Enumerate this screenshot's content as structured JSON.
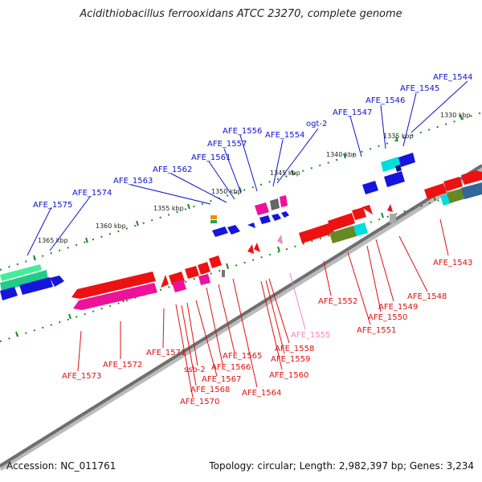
{
  "title": "Acidithiobacillus ferrooxidans ATCC 23270, complete genome",
  "footer": {
    "accession": "Accession: NC_011761",
    "summary": "Topology: circular; Length: 2,982,397 bp; Genes: 3,234"
  },
  "colors": {
    "forward_label": "#1010cc",
    "reverse_label": "#dd1111",
    "faded_label": "#ee88bb",
    "backbone": "#777777",
    "tick": "#228822"
  },
  "ruler_outer": [
    "1330 kbp",
    "1335 kbp",
    "1340 kbp",
    "1345 kbp",
    "1350 kbp",
    "1355 kbp",
    "1360 kbp",
    "1365 kbp"
  ],
  "labels_top": [
    "AFE_1544",
    "AFE_1545",
    "AFE_1546",
    "AFE_1547",
    "ogt-2",
    "AFE_1554",
    "AFE_1556",
    "AFE_1557",
    "AFE_1561",
    "AFE_1562",
    "AFE_1563",
    "AFE_1574",
    "AFE_1575"
  ],
  "labels_bottom": [
    "AFE_1543",
    "AFE_1548",
    "AFE_1549",
    "AFE_1550",
    "AFE_1551",
    "AFE_1552",
    "AFE_1555",
    "AFE_1558",
    "AFE_1559",
    "AFE_1560",
    "AFE_1564",
    "AFE_1565",
    "AFE_1566",
    "AFE_1567",
    "ssb-2",
    "AFE_1568",
    "AFE_1570",
    "AFE_1571",
    "AFE_1572",
    "AFE_1573"
  ]
}
